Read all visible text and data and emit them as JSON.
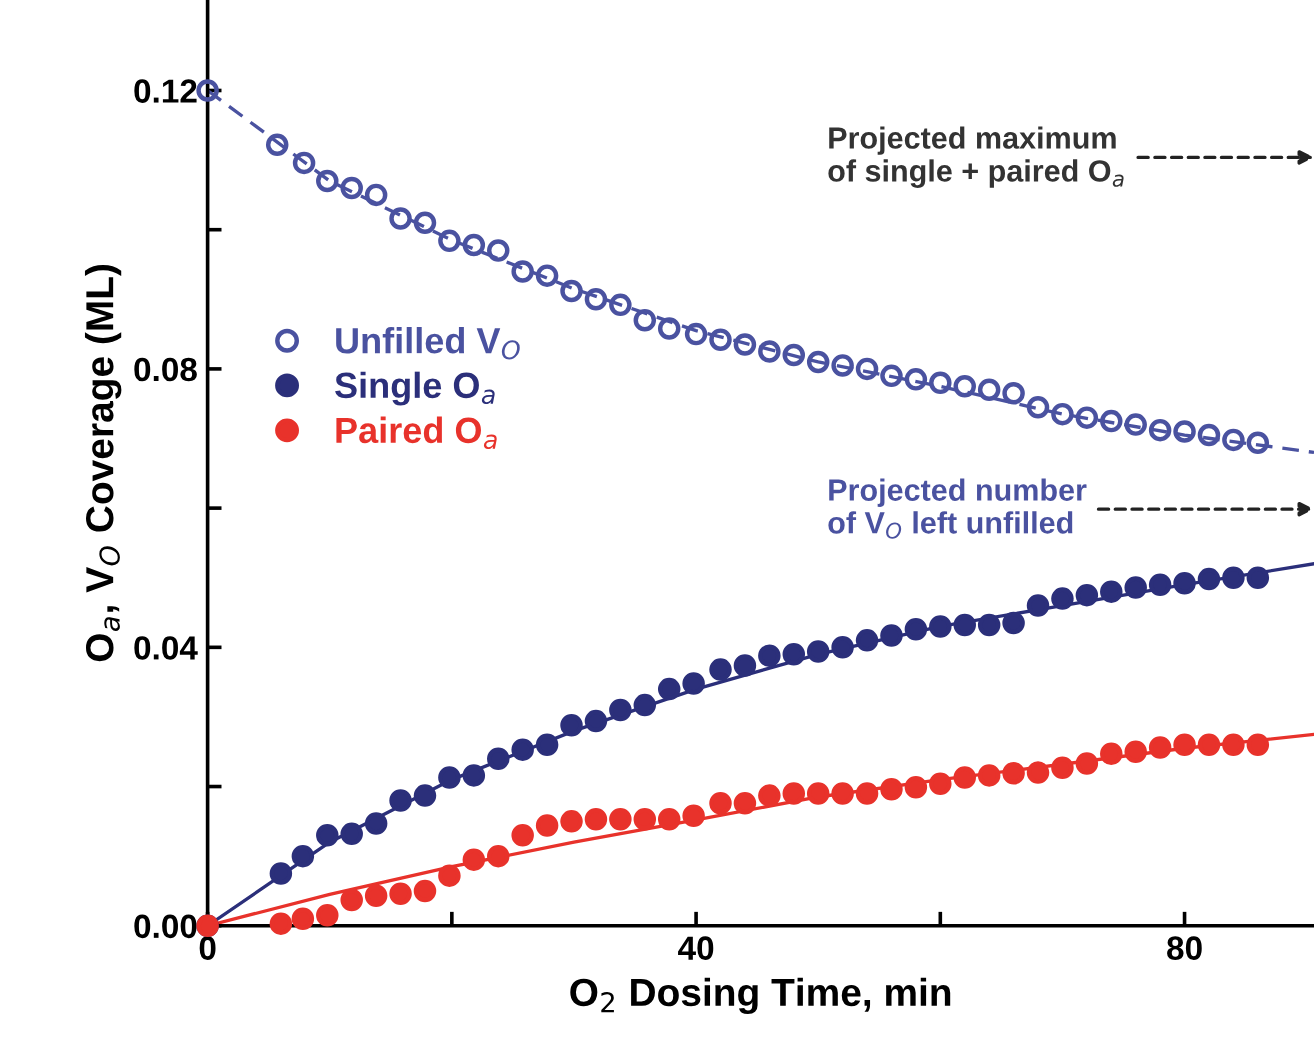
{
  "chart_data": {
    "type": "scatter",
    "xlabel": "O$_{2}$ Dosing Time, min",
    "ylabel": "O$_{a}$, V$_{O}$ Coverage (ML)",
    "xlim": [
      0,
      90.6
    ],
    "ylim": [
      0,
      0.133
    ],
    "xticks": [
      0,
      {
        "value": 20,
        "label": null
      },
      40,
      {
        "value": 60,
        "label": null
      },
      80
    ],
    "yticks": [
      {
        "value": 0,
        "label": "0.00"
      },
      {
        "value": 0.02,
        "label": null
      },
      {
        "value": 0.04,
        "label": "0.04"
      },
      {
        "value": 0.06,
        "label": null
      },
      {
        "value": 0.08,
        "label": "0.08"
      },
      {
        "value": 0.1,
        "label": null
      },
      {
        "value": 0.12,
        "label": "0.12"
      }
    ],
    "grid": false,
    "legend": "left",
    "annotations": [
      "Projected maximum\nof single + paired O$_{a}$",
      "Projected number\nof V$_{O}$ left unfilled"
    ],
    "series": [
      {
        "name": "Unfilled V$_{O}$",
        "color": "#4a52a0",
        "marker": "circle",
        "x": [
          0,
          5.7,
          7.9,
          9.8,
          11.8,
          13.8,
          15.8,
          17.8,
          19.8,
          21.8,
          23.8,
          25.8,
          27.8,
          29.8,
          31.8,
          33.8,
          35.8,
          37.8,
          40,
          42,
          44,
          46,
          48,
          50,
          52,
          54,
          56,
          58,
          60,
          62,
          64,
          66,
          68,
          70,
          72,
          74,
          76,
          78,
          80,
          82,
          84,
          86
        ],
        "values": [
          0.12,
          0.1122,
          0.1096,
          0.107,
          0.106,
          0.105,
          0.1016,
          0.101,
          0.0984,
          0.0978,
          0.097,
          0.094,
          0.0934,
          0.0912,
          0.09,
          0.0892,
          0.087,
          0.0858,
          0.085,
          0.0842,
          0.0835,
          0.0825,
          0.082,
          0.081,
          0.0805,
          0.08,
          0.079,
          0.0785,
          0.078,
          0.0775,
          0.077,
          0.0765,
          0.0745,
          0.0735,
          0.073,
          0.0725,
          0.072,
          0.0712,
          0.071,
          0.0705,
          0.0698,
          0.0694
        ]
      },
      {
        "name": "Single O$_{a}$",
        "color": "#2b2f7a",
        "marker": "circle",
        "x": [
          0,
          6,
          7.8,
          9.8,
          11.8,
          13.8,
          15.8,
          17.8,
          19.8,
          21.8,
          23.8,
          25.8,
          27.8,
          29.8,
          31.8,
          33.8,
          35.8,
          37.8,
          39.8,
          42,
          44,
          46,
          48,
          50,
          52,
          54,
          56,
          58,
          60,
          62,
          64,
          66,
          68,
          70,
          72,
          74,
          76,
          78,
          80,
          82,
          84,
          86
        ],
        "values": [
          0,
          0.0075,
          0.01,
          0.013,
          0.0132,
          0.0147,
          0.018,
          0.0187,
          0.0213,
          0.0216,
          0.024,
          0.0253,
          0.026,
          0.0288,
          0.0294,
          0.031,
          0.0317,
          0.034,
          0.0348,
          0.0368,
          0.0374,
          0.0388,
          0.039,
          0.0394,
          0.04,
          0.041,
          0.0417,
          0.0426,
          0.043,
          0.0432,
          0.0432,
          0.0435,
          0.046,
          0.047,
          0.0475,
          0.048,
          0.0486,
          0.049,
          0.0492,
          0.0498,
          0.05,
          0.05
        ]
      },
      {
        "name": "Paired O$_{a}$",
        "color": "#e8322b",
        "marker": "circle",
        "x": [
          0,
          6,
          7.8,
          9.8,
          11.8,
          13.8,
          15.8,
          17.8,
          19.8,
          21.8,
          23.8,
          25.8,
          27.8,
          29.8,
          31.8,
          33.8,
          35.8,
          37.8,
          39.8,
          42,
          44,
          46,
          48,
          50,
          52,
          54,
          56,
          58,
          60,
          62,
          64,
          66,
          68,
          70,
          72,
          74,
          76,
          78,
          80,
          82,
          84,
          86
        ],
        "values": [
          0,
          0.0003,
          0.001,
          0.0015,
          0.0037,
          0.0043,
          0.0046,
          0.005,
          0.0072,
          0.0095,
          0.01,
          0.013,
          0.0144,
          0.015,
          0.0153,
          0.0153,
          0.0153,
          0.0153,
          0.0158,
          0.0176,
          0.0176,
          0.0187,
          0.019,
          0.019,
          0.019,
          0.019,
          0.0196,
          0.0199,
          0.0204,
          0.0213,
          0.0216,
          0.0219,
          0.022,
          0.0227,
          0.0233,
          0.0247,
          0.025,
          0.0256,
          0.026,
          0.026,
          0.026,
          0.026
        ]
      },
      {
        "type": "line",
        "color": "#4a52a0",
        "line_style": "dashed",
        "x": [
          0,
          10,
          20,
          30,
          40,
          50,
          60,
          70,
          80,
          90.6
        ],
        "values": [
          0.12,
          0.107,
          0.0985,
          0.0915,
          0.0855,
          0.081,
          0.0775,
          0.0735,
          0.0705,
          0.068
        ]
      },
      {
        "type": "line",
        "color": "#2b2f7a",
        "line_style": "solid",
        "x": [
          0,
          10,
          20,
          30,
          40,
          50,
          60,
          70,
          80,
          90.6
        ],
        "values": [
          0,
          0.012,
          0.021,
          0.028,
          0.034,
          0.039,
          0.043,
          0.046,
          0.049,
          0.052
        ]
      },
      {
        "type": "line",
        "color": "#e8322b",
        "line_style": "solid",
        "x": [
          0,
          10,
          20,
          30,
          40,
          50,
          60,
          70,
          80,
          90.6
        ],
        "values": [
          0,
          0.0045,
          0.0085,
          0.012,
          0.0152,
          0.0185,
          0.021,
          0.0232,
          0.0255,
          0.0275
        ]
      }
    ]
  }
}
